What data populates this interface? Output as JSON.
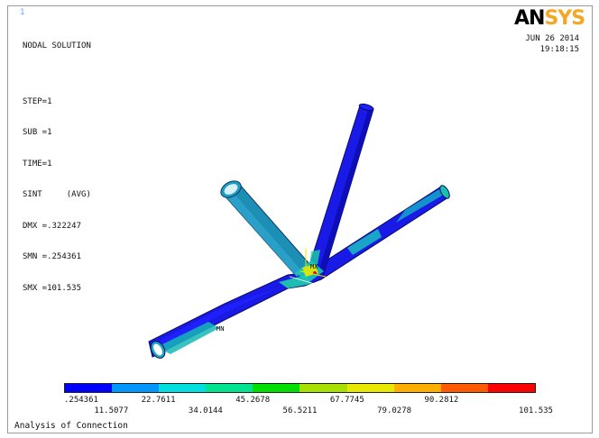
{
  "window": {
    "number": "1"
  },
  "info": {
    "title": "NODAL SOLUTION",
    "step": "STEP=1",
    "sub": "SUB =1",
    "time": "TIME=1",
    "result": "SINT     (AVG)",
    "dmx": "DMX =.322247",
    "smn": "SMN =.254361",
    "smx": "SMX =101.535"
  },
  "logo": {
    "part1": "AN",
    "part2": "SYS"
  },
  "timestamp": {
    "date": "JUN 26 2014",
    "time": "19:18:15"
  },
  "model": {
    "mx_label": "MX",
    "mn_label": "MN"
  },
  "legend": {
    "colors": [
      "#0000ff",
      "#0098ff",
      "#00e0e0",
      "#00e38f",
      "#00e000",
      "#a8e000",
      "#e8e800",
      "#ffae00",
      "#ff5a00",
      "#ff0000"
    ],
    "labels_top": [
      ".254361",
      "22.7611",
      "45.2678",
      "67.7745",
      "90.2812"
    ],
    "labels_bottom": [
      "11.5077",
      "34.0144",
      "56.5211",
      "79.0278",
      "101.535"
    ]
  },
  "caption": "Analysis of Connection"
}
